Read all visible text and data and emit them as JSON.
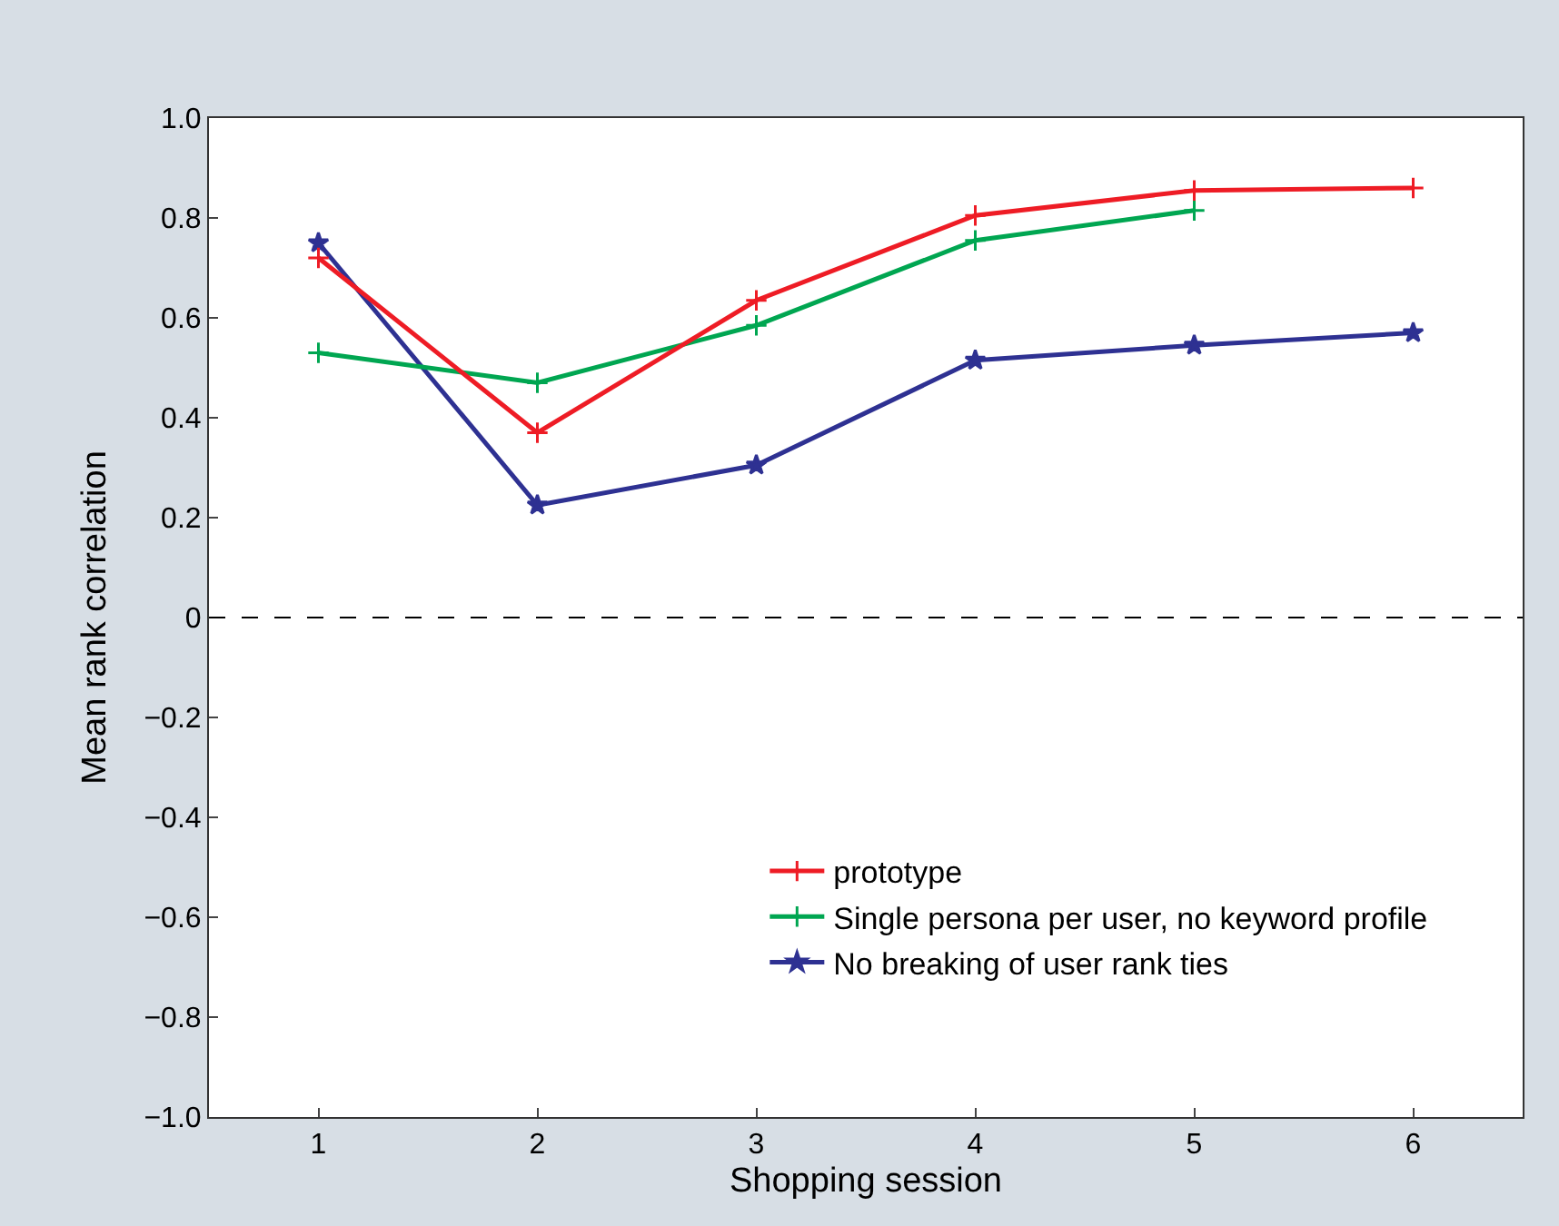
{
  "chart_data": {
    "type": "line",
    "xlabel": "Shopping session",
    "ylabel": "Mean rank correlation",
    "x": [
      1,
      2,
      3,
      4,
      5,
      6
    ],
    "series": [
      {
        "name": "prototype",
        "color": "#ee1c25",
        "marker": "cross",
        "values": [
          0.72,
          0.37,
          0.635,
          0.805,
          0.855,
          0.86
        ]
      },
      {
        "name": "Single persona per user, no keyword profile",
        "color": "#00a651",
        "marker": "cross",
        "values": [
          0.53,
          0.47,
          0.585,
          0.755,
          0.815,
          null
        ]
      },
      {
        "name": "No breaking of user rank ties",
        "color": "#2e3192",
        "marker": "star",
        "values": [
          0.75,
          0.225,
          0.305,
          0.515,
          0.545,
          0.57
        ]
      }
    ],
    "xlim": [
      0.5,
      6.5
    ],
    "xticks": [
      1,
      2,
      3,
      4,
      5,
      6
    ],
    "ylim": [
      -1.0,
      1.0
    ],
    "yticks": [
      {
        "value": -1.0,
        "label": "−1.0"
      },
      {
        "value": -0.8,
        "label": "−0.8"
      },
      {
        "value": -0.6,
        "label": "−0.6"
      },
      {
        "value": -0.4,
        "label": "−0.4"
      },
      {
        "value": -0.2,
        "label": "−0.2"
      },
      {
        "value": 0,
        "label": "0"
      },
      {
        "value": 0.2,
        "label": "0.2"
      },
      {
        "value": 0.4,
        "label": "0.4"
      },
      {
        "value": 0.6,
        "label": "0.6"
      },
      {
        "value": 0.8,
        "label": "0.8"
      },
      {
        "value": 1.0,
        "label": "1.0"
      }
    ],
    "ref_lines": [
      {
        "axis": "y",
        "value": 0,
        "color": "#000000",
        "line_style": "dashed"
      }
    ],
    "legend": "bottom right",
    "line_style": "solid"
  }
}
